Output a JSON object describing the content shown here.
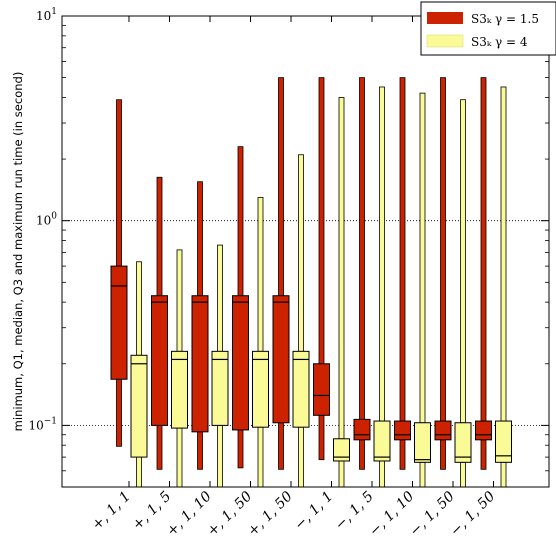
{
  "chart_data": {
    "type": "boxplot",
    "title": "",
    "xlabel": "",
    "ylabel": "minimum, Q1, median, Q3 and maximum run time (in second)",
    "yscale": "log",
    "ylim": [
      0.05,
      10
    ],
    "y_ticks": [
      {
        "value": 0.1,
        "base": "10",
        "exp": "−1"
      },
      {
        "value": 1,
        "base": "10",
        "exp": "0"
      },
      {
        "value": 10,
        "base": "10",
        "exp": "1"
      }
    ],
    "grid": "horizontal dotted at major ticks",
    "legend_position": "top-right",
    "categories": [
      "+, 1, 1",
      "+, 1, 5",
      "+, 1, 10",
      "+, 1, 50",
      "+, 1, 50",
      "−, 1, 1",
      "−, 1, 5",
      "−, 1, 10",
      "−, 1, 50",
      "−, 1, 50"
    ],
    "series": [
      {
        "name": "S3ₖ γ = 1.5",
        "color": "#cc2200",
        "boxes": [
          {
            "min": 0.079,
            "q1": 0.168,
            "median": 0.48,
            "q3": 0.6,
            "max": 3.9
          },
          {
            "min": 0.061,
            "q1": 0.1,
            "median": 0.4,
            "q3": 0.43,
            "max": 1.63
          },
          {
            "min": 0.061,
            "q1": 0.093,
            "median": 0.4,
            "q3": 0.43,
            "max": 1.55
          },
          {
            "min": 0.062,
            "q1": 0.095,
            "median": 0.4,
            "q3": 0.43,
            "max": 2.3
          },
          {
            "min": 0.061,
            "q1": 0.103,
            "median": 0.4,
            "q3": 0.43,
            "max": 5.0
          },
          {
            "min": 0.068,
            "q1": 0.112,
            "median": 0.14,
            "q3": 0.2,
            "max": 5.0
          },
          {
            "min": 0.061,
            "q1": 0.085,
            "median": 0.09,
            "q3": 0.107,
            "max": 5.0
          },
          {
            "min": 0.061,
            "q1": 0.085,
            "median": 0.09,
            "q3": 0.105,
            "max": 5.0
          },
          {
            "min": 0.061,
            "q1": 0.085,
            "median": 0.09,
            "q3": 0.105,
            "max": 5.0
          },
          {
            "min": 0.061,
            "q1": 0.085,
            "median": 0.09,
            "q3": 0.105,
            "max": 5.0
          }
        ]
      },
      {
        "name": "S3ₖ γ = 4",
        "color": "#fafa96",
        "boxes": [
          {
            "min": 0.05,
            "q1": 0.07,
            "median": 0.2,
            "q3": 0.22,
            "max": 0.63
          },
          {
            "min": 0.05,
            "q1": 0.097,
            "median": 0.21,
            "q3": 0.23,
            "max": 0.72
          },
          {
            "min": 0.05,
            "q1": 0.1,
            "median": 0.21,
            "q3": 0.23,
            "max": 0.76
          },
          {
            "min": 0.05,
            "q1": 0.098,
            "median": 0.21,
            "q3": 0.23,
            "max": 1.3
          },
          {
            "min": 0.05,
            "q1": 0.098,
            "median": 0.21,
            "q3": 0.23,
            "max": 2.1
          },
          {
            "min": 0.05,
            "q1": 0.067,
            "median": 0.07,
            "q3": 0.086,
            "max": 4.0
          },
          {
            "min": 0.05,
            "q1": 0.067,
            "median": 0.07,
            "q3": 0.105,
            "max": 4.5
          },
          {
            "min": 0.05,
            "q1": 0.066,
            "median": 0.068,
            "q3": 0.103,
            "max": 4.2
          },
          {
            "min": 0.05,
            "q1": 0.066,
            "median": 0.07,
            "q3": 0.103,
            "max": 3.9
          },
          {
            "min": 0.05,
            "q1": 0.066,
            "median": 0.071,
            "q3": 0.105,
            "max": 4.5
          }
        ]
      }
    ]
  }
}
